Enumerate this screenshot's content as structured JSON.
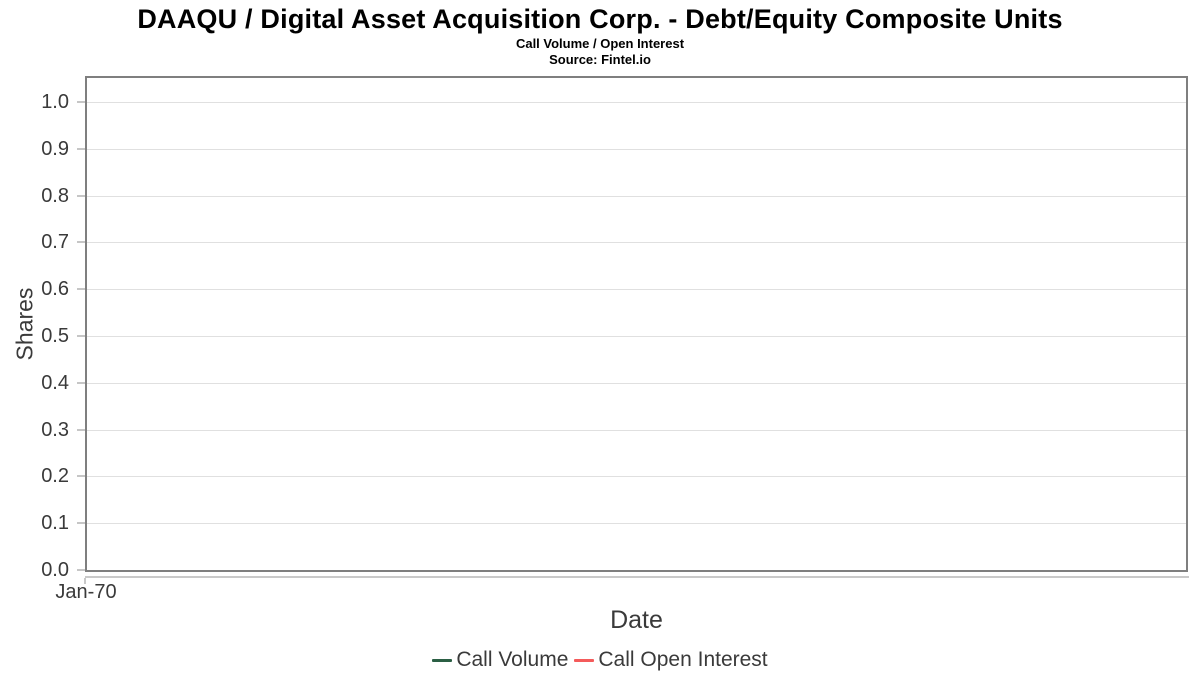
{
  "header": {
    "title": "DAAQU / Digital Asset Acquisition Corp. - Debt/Equity Composite Units",
    "subtitle": "Call Volume / Open Interest",
    "source": "Source: Fintel.io"
  },
  "chart_data": {
    "type": "line",
    "title": "DAAQU / Digital Asset Acquisition Corp. - Debt/Equity Composite Units",
    "subtitle": "Call Volume / Open Interest",
    "source": "Source: Fintel.io",
    "xlabel": "Date",
    "ylabel": "Shares",
    "x_ticks": [
      "Jan-70"
    ],
    "y_ticks": [
      {
        "value": 0.0,
        "label": "0.0"
      },
      {
        "value": 0.1,
        "label": "0.1"
      },
      {
        "value": 0.2,
        "label": "0.2"
      },
      {
        "value": 0.3,
        "label": "0.3"
      },
      {
        "value": 0.4,
        "label": "0.4"
      },
      {
        "value": 0.5,
        "label": "0.5"
      },
      {
        "value": 0.6,
        "label": "0.6"
      },
      {
        "value": 0.7,
        "label": "0.7"
      },
      {
        "value": 0.8,
        "label": "0.8"
      },
      {
        "value": 0.9,
        "label": "0.9"
      },
      {
        "value": 1.0,
        "label": "1.0"
      }
    ],
    "ylim": [
      0.0,
      1.06
    ],
    "grid": true,
    "legend_position": "bottom",
    "series": [
      {
        "name": "Call Volume",
        "color": "#2b5f44",
        "x": [],
        "values": []
      },
      {
        "name": "Call Open Interest",
        "color": "#f45b5b",
        "x": [],
        "values": []
      }
    ],
    "empty_plot": true
  },
  "colors": {
    "plot_border": "#7f7f7f",
    "gridline": "#e0e0e0",
    "axis_line": "#c9c9c9",
    "tick": "#c6c6c6",
    "text_primary": "#000000",
    "text_axis": "#3a3a3a",
    "call_volume": "#2b5f44",
    "call_open_interest": "#f45b5b"
  }
}
